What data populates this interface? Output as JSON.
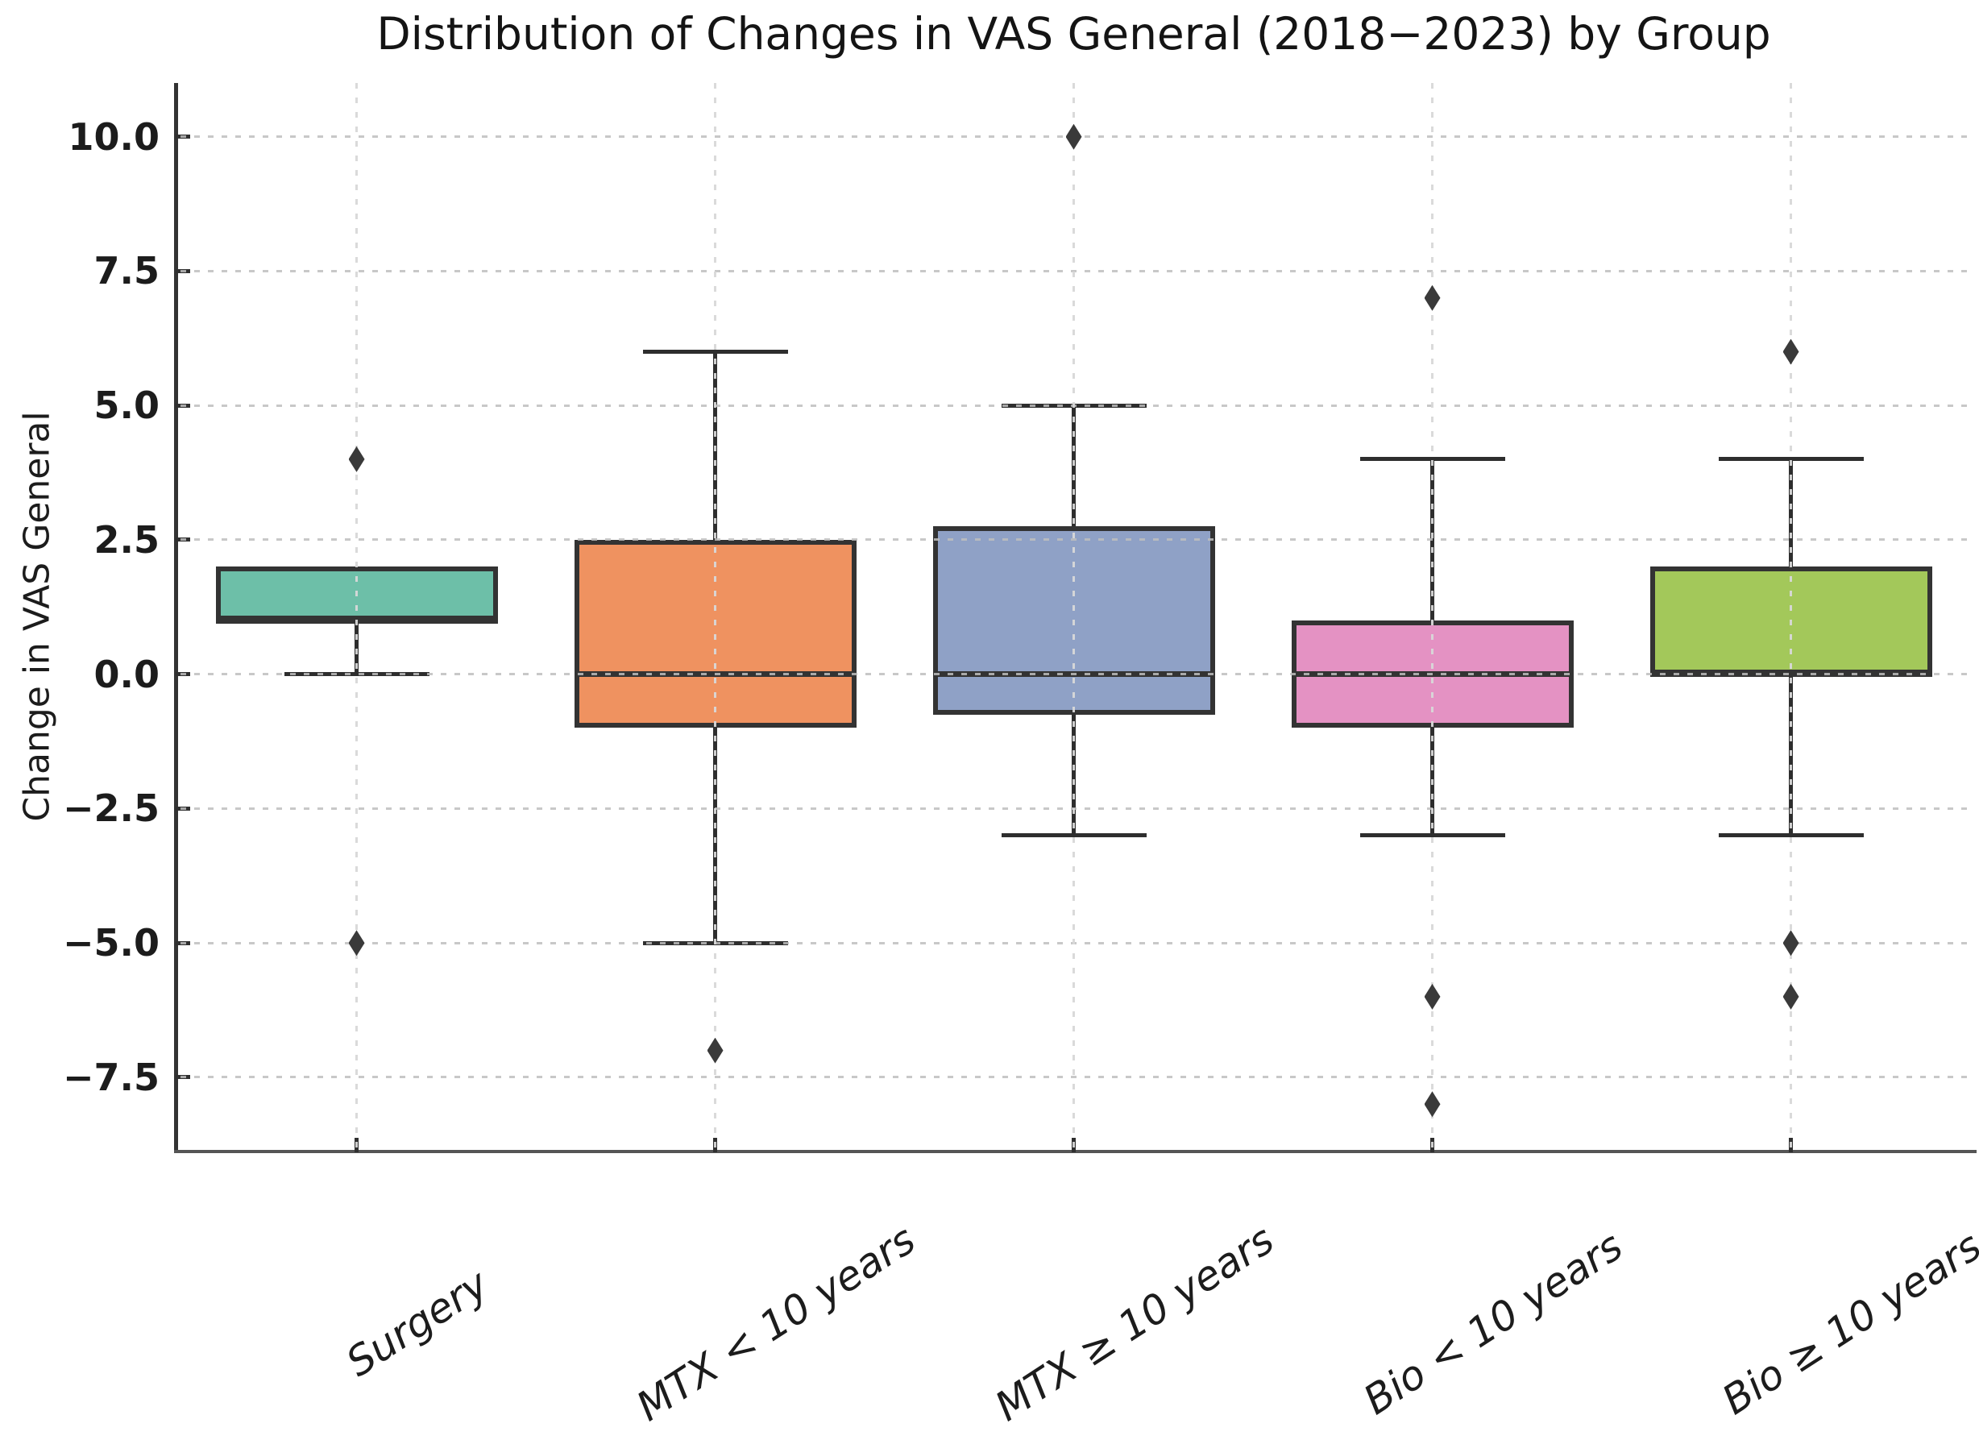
{
  "chart_data": {
    "type": "box",
    "title": "Distribution of Changes in VAS General (2018−2023) by Group",
    "ylabel": "Change in VAS General",
    "xlabel": "",
    "ylim": [
      -8.85,
      11.0
    ],
    "yticks": [
      10.0,
      7.5,
      5.0,
      2.5,
      0.0,
      -2.5,
      -5.0,
      -7.5
    ],
    "ytick_labels": [
      "10.0",
      "7.5",
      "5.0",
      "2.5",
      "0.0",
      "−2.5",
      "−5.0",
      "−7.5"
    ],
    "grid": {
      "horizontal": true,
      "vertical": true,
      "style": "dotted",
      "color": "#cfcfcf"
    },
    "legend": "none",
    "categories": [
      "Surgery",
      "MTX < 10 years",
      "MTX ≥ 10 years",
      "Bio < 10 years",
      "Bio ≥ 10 years"
    ],
    "series": [
      {
        "name": "Surgery",
        "fill": "#6dbfa8",
        "q1": 1.0,
        "median": 1.0,
        "q3": 2.0,
        "whisker_low": 0.0,
        "whisker_high": 2.0,
        "outliers": [
          4.0,
          -5.0
        ]
      },
      {
        "name": "MTX < 10 years",
        "fill": "#ef9260",
        "q1": -1.0,
        "median": 0.0,
        "q3": 2.5,
        "whisker_low": -5.0,
        "whisker_high": 6.0,
        "outliers": [
          -7.0
        ]
      },
      {
        "name": "MTX ≥ 10 years",
        "fill": "#8fa1c6",
        "q1": -0.75,
        "median": 0.0,
        "q3": 2.75,
        "whisker_low": -3.0,
        "whisker_high": 5.0,
        "outliers": [
          10.0
        ]
      },
      {
        "name": "Bio < 10 years",
        "fill": "#e492c3",
        "q1": -1.0,
        "median": 0.0,
        "q3": 1.0,
        "whisker_low": -3.0,
        "whisker_high": 4.0,
        "outliers": [
          7.0,
          -6.0,
          -8.0
        ]
      },
      {
        "name": "Bio ≥ 10 years",
        "fill": "#a3c85a",
        "q1": 0.0,
        "median": 0.0,
        "q3": 2.0,
        "whisker_low": -3.0,
        "whisker_high": 4.0,
        "outliers": [
          6.0,
          -5.0,
          -6.0
        ]
      }
    ],
    "style_colors": {
      "box_edge": "#333333",
      "median": "#333333",
      "whisker": "#2e2e2e",
      "outlier": "#3a3a3a",
      "left_spine": "#333333",
      "bottom_spine": "#555555",
      "background": "#ffffff"
    }
  }
}
